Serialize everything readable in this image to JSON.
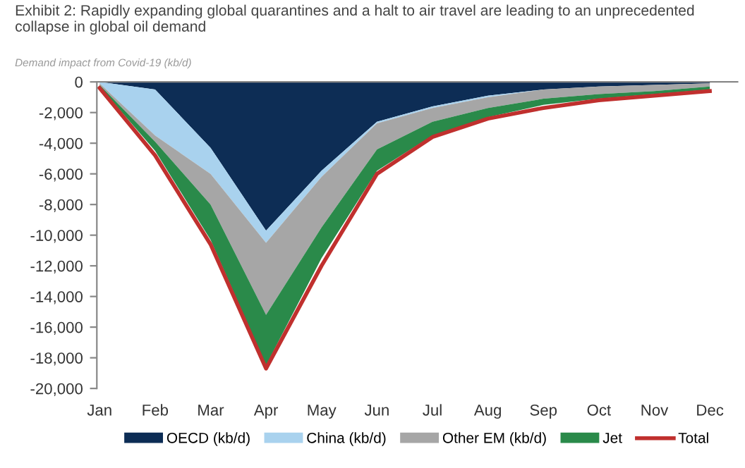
{
  "chart_data": {
    "type": "area",
    "stacked": true,
    "title": "Exhibit 2: Rapidly expanding global quarantines and a halt to air travel are leading to an unprecedented collapse in global oil demand",
    "subtitle": "Demand impact from Covid-19 (kb/d)",
    "categories": [
      "Jan",
      "Feb",
      "Mar",
      "Apr",
      "May",
      "Jun",
      "Jul",
      "Aug",
      "Sep",
      "Oct",
      "Nov",
      "Dec"
    ],
    "series": [
      {
        "name": "OECD (kb/d)",
        "color": "#0d2d55",
        "values": [
          0,
          -500,
          -4300,
          -9700,
          -5800,
          -2600,
          -1600,
          -900,
          -500,
          -300,
          -200,
          -100
        ]
      },
      {
        "name": "China (kb/d)",
        "color": "#a9d2ee",
        "values": [
          -100,
          -3000,
          -1700,
          -800,
          -400,
          -100,
          -100,
          -100,
          0,
          0,
          0,
          0
        ]
      },
      {
        "name": "Other EM (kb/d)",
        "color": "#a6a6a6",
        "values": [
          -100,
          -400,
          -2000,
          -4700,
          -3300,
          -1700,
          -900,
          -700,
          -600,
          -500,
          -400,
          -200
        ]
      },
      {
        "name": "Jet",
        "color": "#2a8a4a",
        "values": [
          -100,
          -600,
          -2300,
          -3300,
          -2000,
          -1400,
          -900,
          -600,
          -400,
          -300,
          -200,
          -200
        ]
      },
      {
        "name": "Total",
        "type": "line",
        "color": "#c0302e",
        "values": [
          -400,
          -4800,
          -10600,
          -18700,
          -12000,
          -6000,
          -3600,
          -2400,
          -1700,
          -1200,
          -900,
          -600
        ]
      }
    ],
    "ylim": [
      -20000,
      0
    ],
    "yticks": [
      {
        "value": 0,
        "label": "0"
      },
      {
        "value": -2000,
        "label": "-2,000"
      },
      {
        "value": -4000,
        "label": "-4,000"
      },
      {
        "value": -6000,
        "label": "-6,000"
      },
      {
        "value": -8000,
        "label": "-8,000"
      },
      {
        "value": -10000,
        "label": "-10,000"
      },
      {
        "value": -12000,
        "label": "-12,000"
      },
      {
        "value": -14000,
        "label": "-14,000"
      },
      {
        "value": -16000,
        "label": "-16,000"
      },
      {
        "value": -18000,
        "label": "-18,000"
      },
      {
        "value": -20000,
        "label": "-20,000"
      }
    ],
    "grid": false,
    "legend": "bottom"
  }
}
